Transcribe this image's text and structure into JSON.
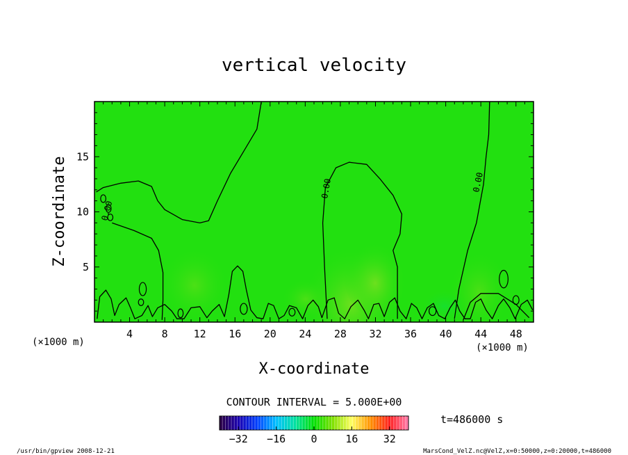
{
  "chart_data": {
    "type": "heatmap",
    "title": "vertical velocity",
    "xlabel": "X-coordinate",
    "ylabel": "Z-coordinate",
    "x_unit": "(×1000 m)",
    "y_unit": "(×1000 m)",
    "xlim": [
      0,
      50
    ],
    "ylim": [
      0,
      20
    ],
    "x_ticks": [
      4,
      8,
      12,
      16,
      20,
      24,
      28,
      32,
      36,
      40,
      44,
      48
    ],
    "y_ticks": [
      5,
      10,
      15
    ],
    "field_color": "#22e010",
    "contour_interval_text": "CONTOUR INTERVAL = 5.000E+00",
    "time_text": "t=486000 s",
    "contour_labels": [
      "0.00",
      "0.00",
      "0.00"
    ],
    "contours": [
      {
        "name": "left-lobe",
        "points": [
          [
            0.2,
            11.8
          ],
          [
            1,
            12.2
          ],
          [
            3,
            12.6
          ],
          [
            5,
            12.8
          ],
          [
            6.5,
            12.3
          ],
          [
            7.2,
            11
          ],
          [
            8,
            10.2
          ],
          [
            10,
            9.3
          ],
          [
            12,
            9
          ],
          [
            13,
            9.2
          ],
          [
            14,
            11
          ],
          [
            15.5,
            13.5
          ],
          [
            17,
            15.5
          ],
          [
            18.5,
            17.5
          ],
          [
            19,
            20
          ]
        ]
      },
      {
        "name": "left-plume",
        "points": [
          [
            2,
            9
          ],
          [
            4.5,
            8.3
          ],
          [
            6.5,
            7.6
          ],
          [
            7.3,
            6.5
          ],
          [
            7.8,
            4.5
          ],
          [
            7.8,
            2
          ],
          [
            7.7,
            0.2
          ]
        ]
      },
      {
        "name": "center-lobe",
        "points": [
          [
            26.5,
            0.3
          ],
          [
            26.2,
            5
          ],
          [
            26,
            9
          ],
          [
            26.3,
            12.2
          ],
          [
            27.5,
            14
          ],
          [
            29,
            14.5
          ],
          [
            31,
            14.3
          ],
          [
            32.5,
            13
          ],
          [
            34,
            11.5
          ],
          [
            35,
            9.8
          ],
          [
            34.8,
            8
          ],
          [
            34,
            6.5
          ],
          [
            34.5,
            5
          ],
          [
            34.5,
            0.3
          ]
        ]
      },
      {
        "name": "right-lobe",
        "points": [
          [
            45,
            20
          ],
          [
            44.9,
            17
          ],
          [
            44.6,
            15
          ],
          [
            44.3,
            12.5
          ],
          [
            43.5,
            9
          ],
          [
            42.5,
            6.5
          ],
          [
            41.5,
            3
          ],
          [
            41,
            0.3
          ]
        ]
      },
      {
        "name": "bottom-right-band",
        "points": [
          [
            42,
            0.2
          ],
          [
            42.8,
            1.8
          ],
          [
            44,
            2.6
          ],
          [
            46,
            2.6
          ],
          [
            48,
            1.6
          ],
          [
            49.5,
            0.4
          ]
        ]
      }
    ],
    "small_loops": [
      {
        "cx": 1.0,
        "cy": 11.2,
        "rx": 0.3,
        "ry": 0.35
      },
      {
        "cx": 1.6,
        "cy": 10.3,
        "rx": 0.3,
        "ry": 0.35
      },
      {
        "cx": 1.8,
        "cy": 9.5,
        "rx": 0.3,
        "ry": 0.3
      },
      {
        "cx": 5.5,
        "cy": 3.0,
        "rx": 0.4,
        "ry": 0.6
      },
      {
        "cx": 5.3,
        "cy": 1.8,
        "rx": 0.3,
        "ry": 0.3
      },
      {
        "cx": 9.8,
        "cy": 0.8,
        "rx": 0.3,
        "ry": 0.4
      },
      {
        "cx": 17.0,
        "cy": 1.2,
        "rx": 0.4,
        "ry": 0.5
      },
      {
        "cx": 22.5,
        "cy": 0.9,
        "rx": 0.35,
        "ry": 0.35
      },
      {
        "cx": 38.5,
        "cy": 1.0,
        "rx": 0.4,
        "ry": 0.4
      },
      {
        "cx": 46.6,
        "cy": 3.9,
        "rx": 0.5,
        "ry": 0.8
      },
      {
        "cx": 48.0,
        "cy": 2.0,
        "rx": 0.35,
        "ry": 0.4
      }
    ],
    "bottom_wave": [
      [
        0.3,
        0.3
      ],
      [
        0.6,
        2.3
      ],
      [
        1.3,
        2.9
      ],
      [
        1.9,
        2.1
      ],
      [
        2.3,
        0.6
      ],
      [
        2.8,
        1.6
      ],
      [
        3.6,
        2.2
      ],
      [
        4.1,
        1.3
      ],
      [
        4.6,
        0.3
      ],
      [
        5.4,
        0.6
      ],
      [
        6.1,
        1.5
      ],
      [
        6.6,
        0.5
      ],
      [
        7.2,
        1.3
      ],
      [
        8,
        1.6
      ],
      [
        8.8,
        1.0
      ],
      [
        9.4,
        0.3
      ],
      [
        10.2,
        0.3
      ],
      [
        11,
        1.3
      ],
      [
        12,
        1.4
      ],
      [
        12.8,
        0.4
      ],
      [
        13.4,
        1.0
      ],
      [
        14.2,
        1.6
      ],
      [
        14.8,
        0.5
      ],
      [
        15.3,
        2.5
      ],
      [
        15.7,
        4.6
      ],
      [
        16.3,
        5.1
      ],
      [
        16.9,
        4.6
      ],
      [
        17.3,
        2.9
      ],
      [
        17.8,
        1.1
      ],
      [
        18.5,
        0.4
      ],
      [
        19.2,
        0.3
      ],
      [
        19.8,
        1.7
      ],
      [
        20.4,
        1.5
      ],
      [
        21,
        0.3
      ],
      [
        21.6,
        0.6
      ],
      [
        22.2,
        1.5
      ],
      [
        23,
        1.3
      ],
      [
        23.7,
        0.3
      ],
      [
        24.3,
        1.5
      ],
      [
        24.9,
        2.0
      ],
      [
        25.5,
        1.4
      ],
      [
        25.9,
        0.4
      ],
      [
        26.6,
        2.0
      ],
      [
        27.3,
        2.2
      ],
      [
        27.8,
        0.8
      ],
      [
        28.5,
        0.3
      ],
      [
        29.2,
        1.4
      ],
      [
        30,
        2.0
      ],
      [
        30.7,
        1.1
      ],
      [
        31.2,
        0.3
      ],
      [
        31.8,
        1.6
      ],
      [
        32.4,
        1.7
      ],
      [
        33,
        0.5
      ],
      [
        33.6,
        1.8
      ],
      [
        34.2,
        2.2
      ],
      [
        34.8,
        1.0
      ],
      [
        35.5,
        0.3
      ],
      [
        36.1,
        1.7
      ],
      [
        36.7,
        1.3
      ],
      [
        37.3,
        0.3
      ],
      [
        37.9,
        1.3
      ],
      [
        38.6,
        1.7
      ],
      [
        39.2,
        0.6
      ],
      [
        39.9,
        0.3
      ],
      [
        40.5,
        1.3
      ],
      [
        41.1,
        2.0
      ],
      [
        41.6,
        1.0
      ],
      [
        42.2,
        0.3
      ],
      [
        42.8,
        0.3
      ],
      [
        43.4,
        1.8
      ],
      [
        44,
        2.1
      ],
      [
        44.6,
        1.1
      ],
      [
        45.3,
        0.3
      ],
      [
        46,
        1.5
      ],
      [
        46.6,
        2.1
      ],
      [
        47.3,
        1.3
      ],
      [
        47.9,
        0.3
      ],
      [
        48.6,
        1.6
      ],
      [
        49.3,
        2.0
      ],
      [
        49.9,
        1.1
      ]
    ],
    "colorbar": {
      "ticks": [
        -32,
        -16,
        0,
        16,
        32
      ],
      "range": [
        -40,
        40
      ],
      "stops": [
        "#2b0040",
        "#1a00b0",
        "#0040ff",
        "#00c0ff",
        "#00e0a0",
        "#00e000",
        "#80e000",
        "#ffff60",
        "#ff9000",
        "#ff2020",
        "#ff80b0"
      ]
    }
  },
  "footer": {
    "left_text": "/usr/bin/gpview  2008-12-21",
    "right_text": "MarsCond_VelZ.nc@VelZ,x=0:50000,z=0:20000,t=486000"
  }
}
